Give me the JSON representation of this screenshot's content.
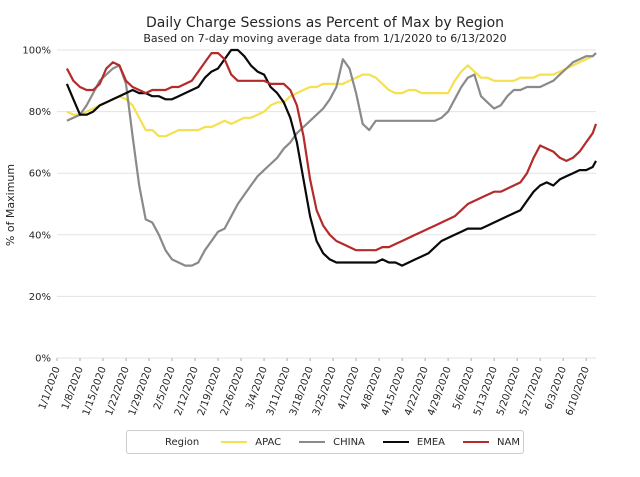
{
  "chart_data": {
    "type": "line",
    "title": "Daily Charge Sessions as Percent of Max by Region",
    "subtitle": "Based on 7-day moving average data from 1/1/2020 to 6/13/2020",
    "xlabel": "",
    "ylabel": "% of Maximum",
    "x_tick_labels": [
      "1/1/2020",
      "1/8/2020",
      "1/15/2020",
      "1/22/2020",
      "1/29/2020",
      "2/5/2020",
      "2/12/2020",
      "2/19/2020",
      "2/26/2020",
      "3/4/2020",
      "3/11/2020",
      "3/18/2020",
      "3/25/2020",
      "4/1/2020",
      "4/8/2020",
      "4/15/2020",
      "4/22/2020",
      "4/29/2020",
      "5/6/2020",
      "5/13/2020",
      "5/20/2020",
      "5/27/2020",
      "6/3/2020",
      "6/10/2020"
    ],
    "y_tick_labels": [
      "0%",
      "20%",
      "40%",
      "60%",
      "80%",
      "100%"
    ],
    "ylim": [
      0,
      100
    ],
    "xlim": [
      "2020-01-01",
      "2020-06-13"
    ],
    "grid": true,
    "legend_title": "Region",
    "legend_position": "bottom",
    "x_dates": [
      "2020-01-04",
      "2020-01-06",
      "2020-01-08",
      "2020-01-10",
      "2020-01-12",
      "2020-01-14",
      "2020-01-16",
      "2020-01-18",
      "2020-01-20",
      "2020-01-22",
      "2020-01-24",
      "2020-01-26",
      "2020-01-28",
      "2020-01-30",
      "2020-02-01",
      "2020-02-03",
      "2020-02-05",
      "2020-02-07",
      "2020-02-09",
      "2020-02-11",
      "2020-02-13",
      "2020-02-15",
      "2020-02-17",
      "2020-02-19",
      "2020-02-21",
      "2020-02-23",
      "2020-02-25",
      "2020-02-27",
      "2020-02-29",
      "2020-03-02",
      "2020-03-04",
      "2020-03-06",
      "2020-03-08",
      "2020-03-10",
      "2020-03-12",
      "2020-03-14",
      "2020-03-16",
      "2020-03-18",
      "2020-03-20",
      "2020-03-22",
      "2020-03-24",
      "2020-03-26",
      "2020-03-28",
      "2020-03-30",
      "2020-04-01",
      "2020-04-03",
      "2020-04-05",
      "2020-04-07",
      "2020-04-09",
      "2020-04-11",
      "2020-04-13",
      "2020-04-15",
      "2020-04-17",
      "2020-04-19",
      "2020-04-21",
      "2020-04-23",
      "2020-04-25",
      "2020-04-27",
      "2020-04-29",
      "2020-05-01",
      "2020-05-03",
      "2020-05-05",
      "2020-05-07",
      "2020-05-09",
      "2020-05-11",
      "2020-05-13",
      "2020-05-15",
      "2020-05-17",
      "2020-05-19",
      "2020-05-21",
      "2020-05-23",
      "2020-05-25",
      "2020-05-27",
      "2020-05-29",
      "2020-05-31",
      "2020-06-02",
      "2020-06-04",
      "2020-06-06",
      "2020-06-08",
      "2020-06-10",
      "2020-06-12",
      "2020-06-13"
    ],
    "series": [
      {
        "name": "APAC",
        "color": "#f5e04f",
        "values": [
          80,
          79,
          79,
          80,
          81,
          82,
          83,
          84,
          85,
          84,
          82,
          78,
          74,
          74,
          72,
          72,
          73,
          74,
          74,
          74,
          74,
          75,
          75,
          76,
          77,
          76,
          77,
          78,
          78,
          79,
          80,
          82,
          83,
          83,
          85,
          86,
          87,
          88,
          88,
          89,
          89,
          89,
          89,
          90,
          91,
          92,
          92,
          91,
          89,
          87,
          86,
          86,
          87,
          87,
          86,
          86,
          86,
          86,
          86,
          90,
          93,
          95,
          93,
          91,
          91,
          90,
          90,
          90,
          90,
          91,
          91,
          91,
          92,
          92,
          92,
          93,
          94,
          95,
          96,
          97,
          98,
          99
        ]
      },
      {
        "name": "CHINA",
        "color": "#8a8a8a",
        "values": [
          77,
          78,
          79,
          82,
          86,
          90,
          92,
          94,
          95,
          89,
          72,
          56,
          45,
          44,
          40,
          35,
          32,
          31,
          30,
          30,
          31,
          35,
          38,
          41,
          42,
          46,
          50,
          53,
          56,
          59,
          61,
          63,
          65,
          68,
          70,
          73,
          75,
          77,
          79,
          81,
          84,
          88,
          97,
          94,
          86,
          76,
          74,
          77,
          77,
          77,
          77,
          77,
          77,
          77,
          77,
          77,
          77,
          78,
          80,
          84,
          88,
          91,
          92,
          85,
          83,
          81,
          82,
          85,
          87,
          87,
          88,
          88,
          88,
          89,
          90,
          92,
          94,
          96,
          97,
          98,
          98,
          99
        ]
      },
      {
        "name": "EMEA",
        "color": "#0a0a0a",
        "values": [
          89,
          84,
          79,
          79,
          80,
          82,
          83,
          84,
          85,
          86,
          87,
          86,
          86,
          85,
          85,
          84,
          84,
          85,
          86,
          87,
          88,
          91,
          93,
          94,
          97,
          100,
          100,
          98,
          95,
          93,
          92,
          88,
          86,
          83,
          78,
          70,
          58,
          46,
          38,
          34,
          32,
          31,
          31,
          31,
          31,
          31,
          31,
          31,
          32,
          31,
          31,
          30,
          31,
          32,
          33,
          34,
          36,
          38,
          39,
          40,
          41,
          42,
          42,
          42,
          43,
          44,
          45,
          46,
          47,
          48,
          51,
          54,
          56,
          57,
          56,
          58,
          59,
          60,
          61,
          61,
          62,
          64
        ]
      },
      {
        "name": "NAM",
        "color": "#b52a2a",
        "values": [
          94,
          90,
          88,
          87,
          87,
          89,
          94,
          96,
          95,
          90,
          88,
          87,
          86,
          87,
          87,
          87,
          88,
          88,
          89,
          90,
          93,
          96,
          99,
          99,
          97,
          92,
          90,
          90,
          90,
          90,
          90,
          89,
          89,
          89,
          87,
          82,
          72,
          58,
          48,
          43,
          40,
          38,
          37,
          36,
          35,
          35,
          35,
          35,
          36,
          36,
          37,
          38,
          39,
          40,
          41,
          42,
          43,
          44,
          45,
          46,
          48,
          50,
          51,
          52,
          53,
          54,
          54,
          55,
          56,
          57,
          60,
          65,
          69,
          68,
          67,
          65,
          64,
          65,
          67,
          70,
          73,
          76
        ]
      }
    ]
  }
}
